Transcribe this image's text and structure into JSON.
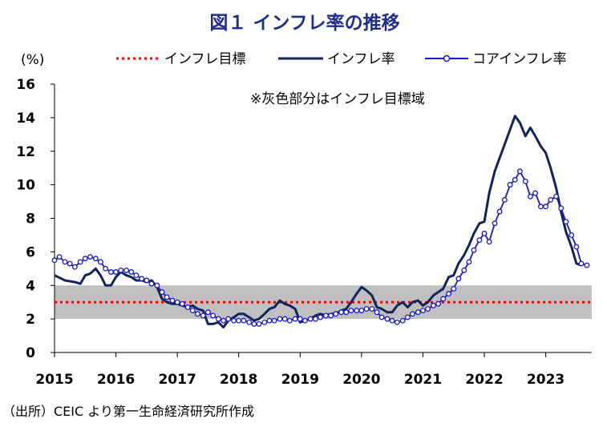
{
  "chart_data": {
    "type": "line",
    "title": "図１ インフレ率の推移",
    "ylabel": "(%)",
    "xlabel": "",
    "ylim": [
      0,
      16
    ],
    "y_ticks": [
      0,
      2,
      4,
      6,
      8,
      10,
      12,
      14,
      16
    ],
    "x_ticks": [
      "2015",
      "2016",
      "2017",
      "2018",
      "2019",
      "2020",
      "2021",
      "2022",
      "2023"
    ],
    "x_range": [
      2015.0,
      2023.75
    ],
    "target_band": {
      "low": 2,
      "high": 4,
      "color": "#c0c0c0"
    },
    "note": "※灰色部分はインフレ目標域",
    "source": "（出所）CEIC より第一生命経済研究所作成",
    "series": [
      {
        "name": "インフレ目標",
        "style": "dotted",
        "color": "#ff0000",
        "points": [
          [
            2015.0,
            3.0
          ],
          [
            2023.75,
            3.0
          ]
        ]
      },
      {
        "name": "インフレ率",
        "style": "solid",
        "color": "#12245a",
        "points": [
          [
            2015.0,
            4.6
          ],
          [
            2015.17,
            4.3
          ],
          [
            2015.33,
            4.2
          ],
          [
            2015.42,
            4.1
          ],
          [
            2015.5,
            4.6
          ],
          [
            2015.58,
            4.7
          ],
          [
            2015.67,
            5.0
          ],
          [
            2015.75,
            4.6
          ],
          [
            2015.83,
            4.0
          ],
          [
            2015.92,
            4.0
          ],
          [
            2016.0,
            4.5
          ],
          [
            2016.08,
            4.8
          ],
          [
            2016.17,
            4.6
          ],
          [
            2016.25,
            4.5
          ],
          [
            2016.33,
            4.3
          ],
          [
            2016.42,
            4.3
          ],
          [
            2016.5,
            4.2
          ],
          [
            2016.58,
            4.3
          ],
          [
            2016.67,
            3.9
          ],
          [
            2016.75,
            3.2
          ],
          [
            2016.83,
            3.0
          ],
          [
            2016.92,
            2.9
          ],
          [
            2017.0,
            2.9
          ],
          [
            2017.08,
            2.8
          ],
          [
            2017.17,
            2.7
          ],
          [
            2017.25,
            2.8
          ],
          [
            2017.33,
            2.6
          ],
          [
            2017.42,
            2.5
          ],
          [
            2017.5,
            1.7
          ],
          [
            2017.58,
            1.7
          ],
          [
            2017.67,
            1.8
          ],
          [
            2017.75,
            1.5
          ],
          [
            2017.83,
            1.9
          ],
          [
            2017.92,
            2.1
          ],
          [
            2018.0,
            2.3
          ],
          [
            2018.08,
            2.3
          ],
          [
            2018.17,
            2.1
          ],
          [
            2018.25,
            1.9
          ],
          [
            2018.33,
            2.0
          ],
          [
            2018.42,
            2.3
          ],
          [
            2018.5,
            2.6
          ],
          [
            2018.58,
            2.7
          ],
          [
            2018.67,
            3.1
          ],
          [
            2018.75,
            2.9
          ],
          [
            2018.83,
            2.8
          ],
          [
            2018.92,
            2.6
          ],
          [
            2019.0,
            1.8
          ],
          [
            2019.08,
            1.9
          ],
          [
            2019.17,
            2.0
          ],
          [
            2019.25,
            2.2
          ],
          [
            2019.33,
            2.3
          ],
          [
            2019.42,
            2.2
          ],
          [
            2019.5,
            2.3
          ],
          [
            2019.58,
            2.3
          ],
          [
            2019.67,
            2.5
          ],
          [
            2019.75,
            2.6
          ],
          [
            2019.83,
            3.0
          ],
          [
            2019.92,
            3.5
          ],
          [
            2020.0,
            3.9
          ],
          [
            2020.08,
            3.7
          ],
          [
            2020.17,
            3.4
          ],
          [
            2020.25,
            2.7
          ],
          [
            2020.33,
            2.6
          ],
          [
            2020.42,
            2.4
          ],
          [
            2020.5,
            2.4
          ],
          [
            2020.58,
            2.8
          ],
          [
            2020.67,
            3.0
          ],
          [
            2020.75,
            2.7
          ],
          [
            2020.83,
            3.0
          ],
          [
            2020.92,
            3.1
          ],
          [
            2021.0,
            2.8
          ],
          [
            2021.08,
            3.0
          ],
          [
            2021.17,
            3.4
          ],
          [
            2021.25,
            3.6
          ],
          [
            2021.33,
            3.8
          ],
          [
            2021.42,
            4.5
          ],
          [
            2021.5,
            4.6
          ],
          [
            2021.58,
            5.3
          ],
          [
            2021.67,
            5.8
          ],
          [
            2021.75,
            6.4
          ],
          [
            2021.83,
            7.1
          ],
          [
            2021.92,
            7.7
          ],
          [
            2022.0,
            7.8
          ],
          [
            2022.08,
            9.5
          ],
          [
            2022.17,
            10.8
          ],
          [
            2022.25,
            11.6
          ],
          [
            2022.33,
            12.4
          ],
          [
            2022.42,
            13.3
          ],
          [
            2022.5,
            14.1
          ],
          [
            2022.58,
            13.7
          ],
          [
            2022.67,
            12.9
          ],
          [
            2022.75,
            13.4
          ],
          [
            2022.83,
            12.9
          ],
          [
            2022.92,
            12.3
          ],
          [
            2023.0,
            11.9
          ],
          [
            2023.08,
            11.0
          ],
          [
            2023.17,
            9.8
          ],
          [
            2023.25,
            8.4
          ],
          [
            2023.33,
            7.2
          ],
          [
            2023.42,
            6.3
          ],
          [
            2023.5,
            5.3
          ],
          [
            2023.58,
            5.2
          ]
        ]
      },
      {
        "name": "コアインフレ率",
        "style": "line-marker",
        "color": "#1a1acc",
        "points": [
          [
            2015.0,
            5.5
          ],
          [
            2015.08,
            5.7
          ],
          [
            2015.17,
            5.4
          ],
          [
            2015.25,
            5.3
          ],
          [
            2015.33,
            5.1
          ],
          [
            2015.42,
            5.4
          ],
          [
            2015.5,
            5.6
          ],
          [
            2015.58,
            5.7
          ],
          [
            2015.67,
            5.6
          ],
          [
            2015.75,
            5.4
          ],
          [
            2015.83,
            5.0
          ],
          [
            2015.92,
            4.8
          ],
          [
            2016.0,
            4.8
          ],
          [
            2016.08,
            4.9
          ],
          [
            2016.17,
            4.9
          ],
          [
            2016.25,
            4.8
          ],
          [
            2016.33,
            4.6
          ],
          [
            2016.42,
            4.4
          ],
          [
            2016.5,
            4.3
          ],
          [
            2016.58,
            4.1
          ],
          [
            2016.67,
            4.0
          ],
          [
            2016.75,
            3.6
          ],
          [
            2016.83,
            3.3
          ],
          [
            2016.92,
            3.1
          ],
          [
            2017.0,
            3.0
          ],
          [
            2017.08,
            2.9
          ],
          [
            2017.17,
            2.7
          ],
          [
            2017.25,
            2.5
          ],
          [
            2017.33,
            2.3
          ],
          [
            2017.42,
            2.2
          ],
          [
            2017.5,
            2.4
          ],
          [
            2017.58,
            2.2
          ],
          [
            2017.67,
            2.0
          ],
          [
            2017.75,
            1.9
          ],
          [
            2017.83,
            2.0
          ],
          [
            2017.92,
            1.9
          ],
          [
            2018.0,
            1.9
          ],
          [
            2018.08,
            1.9
          ],
          [
            2018.17,
            1.8
          ],
          [
            2018.25,
            1.7
          ],
          [
            2018.33,
            1.7
          ],
          [
            2018.42,
            1.8
          ],
          [
            2018.5,
            1.9
          ],
          [
            2018.58,
            1.9
          ],
          [
            2018.67,
            2.0
          ],
          [
            2018.75,
            2.0
          ],
          [
            2018.83,
            1.9
          ],
          [
            2018.92,
            2.0
          ],
          [
            2019.0,
            2.0
          ],
          [
            2019.08,
            1.9
          ],
          [
            2019.17,
            2.0
          ],
          [
            2019.25,
            2.0
          ],
          [
            2019.33,
            2.1
          ],
          [
            2019.42,
            2.2
          ],
          [
            2019.5,
            2.2
          ],
          [
            2019.58,
            2.3
          ],
          [
            2019.67,
            2.4
          ],
          [
            2019.75,
            2.4
          ],
          [
            2019.83,
            2.5
          ],
          [
            2019.92,
            2.5
          ],
          [
            2020.0,
            2.5
          ],
          [
            2020.08,
            2.6
          ],
          [
            2020.17,
            2.6
          ],
          [
            2020.25,
            2.4
          ],
          [
            2020.33,
            2.1
          ],
          [
            2020.42,
            2.0
          ],
          [
            2020.5,
            1.9
          ],
          [
            2020.58,
            1.8
          ],
          [
            2020.67,
            1.9
          ],
          [
            2020.75,
            2.1
          ],
          [
            2020.83,
            2.3
          ],
          [
            2020.92,
            2.4
          ],
          [
            2021.0,
            2.5
          ],
          [
            2021.08,
            2.6
          ],
          [
            2021.17,
            2.8
          ],
          [
            2021.25,
            2.9
          ],
          [
            2021.33,
            3.2
          ],
          [
            2021.42,
            3.5
          ],
          [
            2021.5,
            3.8
          ],
          [
            2021.58,
            4.4
          ],
          [
            2021.67,
            4.9
          ],
          [
            2021.75,
            5.4
          ],
          [
            2021.83,
            6.1
          ],
          [
            2021.92,
            6.7
          ],
          [
            2022.0,
            7.1
          ],
          [
            2022.08,
            6.6
          ],
          [
            2022.17,
            7.7
          ],
          [
            2022.25,
            8.4
          ],
          [
            2022.33,
            9.1
          ],
          [
            2022.42,
            10.0
          ],
          [
            2022.5,
            10.3
          ],
          [
            2022.58,
            10.8
          ],
          [
            2022.67,
            10.2
          ],
          [
            2022.75,
            9.3
          ],
          [
            2022.83,
            9.5
          ],
          [
            2022.92,
            8.7
          ],
          [
            2023.0,
            8.7
          ],
          [
            2023.08,
            9.1
          ],
          [
            2023.17,
            9.3
          ],
          [
            2023.25,
            8.6
          ],
          [
            2023.33,
            7.8
          ],
          [
            2023.42,
            7.0
          ],
          [
            2023.5,
            6.3
          ],
          [
            2023.58,
            5.3
          ],
          [
            2023.67,
            5.2
          ]
        ]
      }
    ]
  }
}
